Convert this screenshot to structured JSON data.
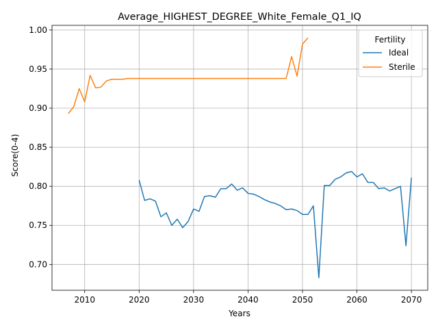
{
  "chart_data": {
    "type": "line",
    "title": "Average_HIGHEST_DEGREE_White_Female_Q1_IQ",
    "xlabel": "Years",
    "ylabel": "Score(0-4)",
    "xlim": [
      2004,
      2073
    ],
    "ylim": [
      0.667,
      1.006
    ],
    "xticks": [
      2010,
      2020,
      2030,
      2040,
      2050,
      2060,
      2070
    ],
    "yticks": [
      0.7,
      0.75,
      0.8,
      0.85,
      0.9,
      0.95,
      1.0
    ],
    "grid": true,
    "legend": {
      "title": "Fertility",
      "position": "top-right"
    },
    "series": [
      {
        "name": "Ideal",
        "color": "#1f77b4",
        "x": [
          2020,
          2021,
          2022,
          2023,
          2024,
          2025,
          2026,
          2027,
          2028,
          2029,
          2030,
          2031,
          2032,
          2033,
          2034,
          2035,
          2036,
          2037,
          2038,
          2039,
          2040,
          2041,
          2042,
          2043,
          2044,
          2045,
          2046,
          2047,
          2048,
          2049,
          2050,
          2051,
          2052,
          2053,
          2054,
          2055,
          2056,
          2057,
          2058,
          2059,
          2060,
          2061,
          2062,
          2063,
          2064,
          2065,
          2066,
          2067,
          2068,
          2069,
          2070
        ],
        "values": [
          0.808,
          0.782,
          0.784,
          0.781,
          0.761,
          0.766,
          0.75,
          0.758,
          0.747,
          0.755,
          0.771,
          0.768,
          0.787,
          0.788,
          0.786,
          0.797,
          0.797,
          0.803,
          0.795,
          0.798,
          0.791,
          0.79,
          0.787,
          0.783,
          0.78,
          0.778,
          0.775,
          0.77,
          0.771,
          0.769,
          0.764,
          0.764,
          0.775,
          0.683,
          0.801,
          0.801,
          0.809,
          0.812,
          0.817,
          0.819,
          0.812,
          0.816,
          0.805,
          0.805,
          0.797,
          0.798,
          0.794,
          0.797,
          0.8,
          0.724,
          0.811
        ]
      },
      {
        "name": "Sterile",
        "color": "#ff7f0e",
        "x": [
          2007,
          2008,
          2009,
          2010,
          2011,
          2012,
          2013,
          2014,
          2015,
          2016,
          2017,
          2018,
          2019,
          2020,
          2021,
          2022,
          2023,
          2024,
          2025,
          2026,
          2027,
          2028,
          2029,
          2030,
          2031,
          2032,
          2033,
          2034,
          2035,
          2036,
          2037,
          2038,
          2039,
          2040,
          2041,
          2042,
          2043,
          2044,
          2045,
          2046,
          2047,
          2048,
          2049,
          2050,
          2051
        ],
        "values": [
          0.893,
          0.902,
          0.925,
          0.908,
          0.942,
          0.926,
          0.927,
          0.935,
          0.937,
          0.937,
          0.937,
          0.938,
          0.938,
          0.938,
          0.938,
          0.938,
          0.938,
          0.938,
          0.938,
          0.938,
          0.938,
          0.938,
          0.938,
          0.938,
          0.938,
          0.938,
          0.938,
          0.938,
          0.938,
          0.938,
          0.938,
          0.938,
          0.938,
          0.938,
          0.938,
          0.938,
          0.938,
          0.938,
          0.938,
          0.938,
          0.938,
          0.966,
          0.941,
          0.982,
          0.99
        ]
      }
    ]
  }
}
